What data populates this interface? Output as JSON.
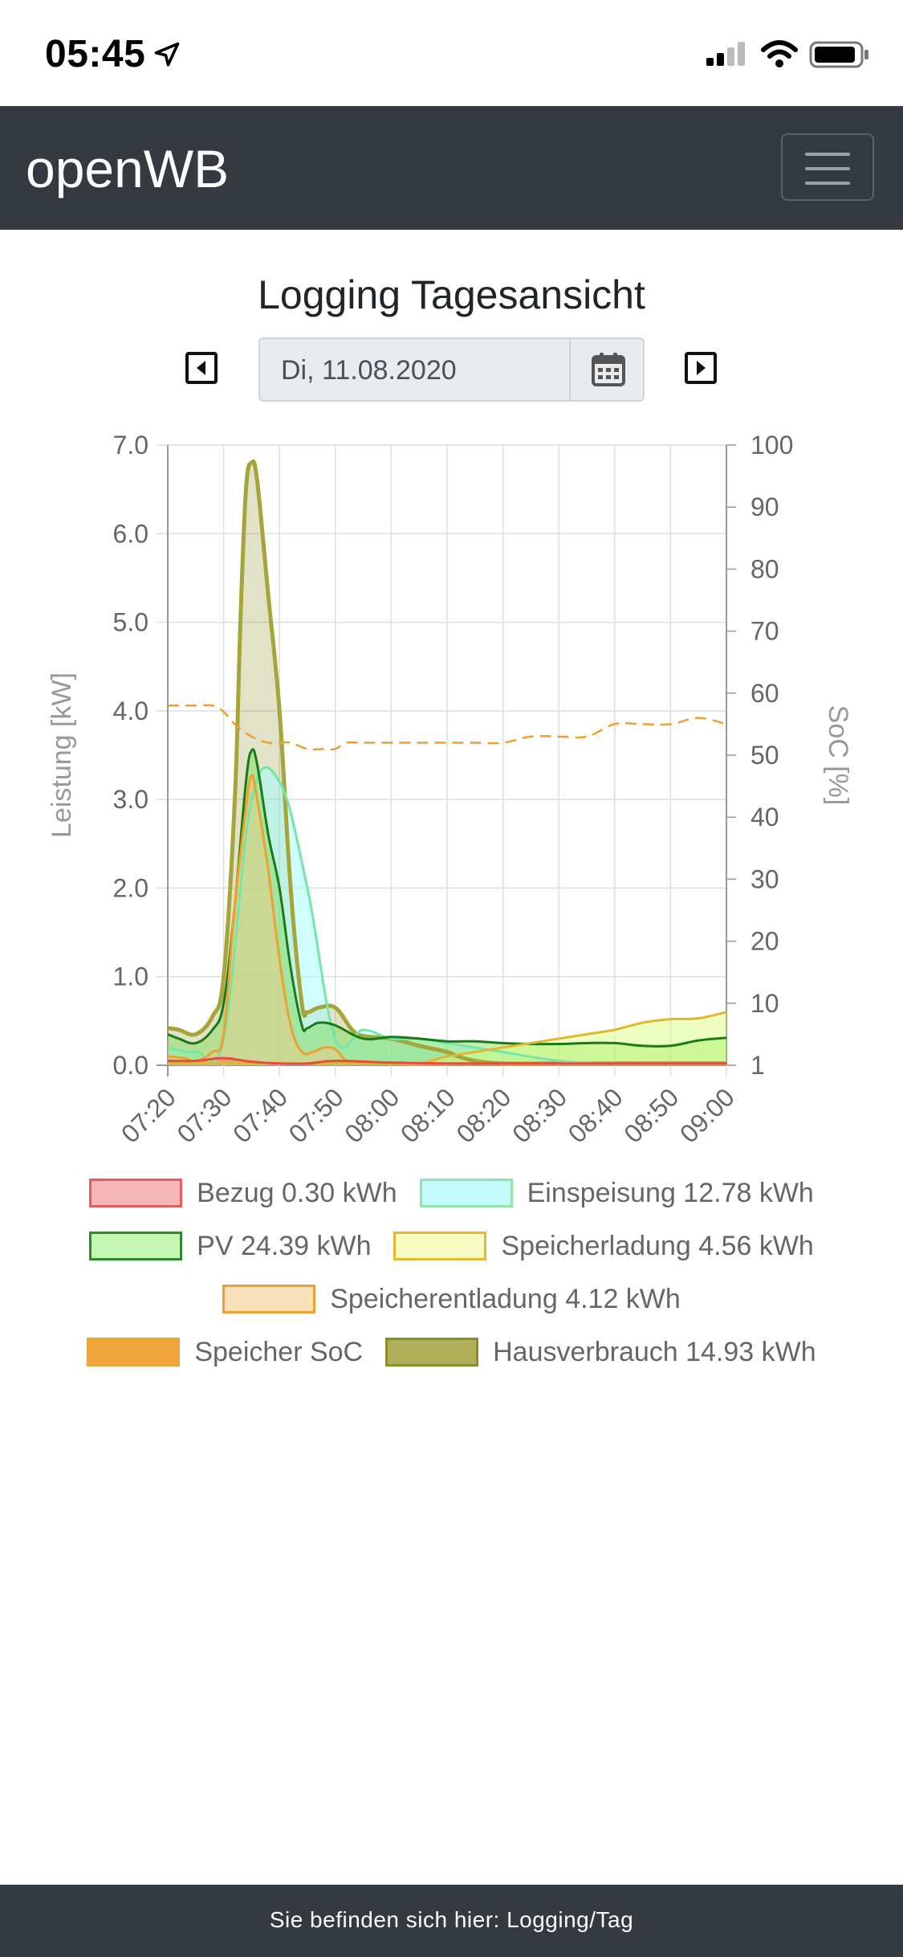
{
  "status_bar": {
    "time": "05:45",
    "icons": [
      "location-arrow-icon",
      "cellular-signal-icon",
      "wifi-icon",
      "battery-icon"
    ]
  },
  "navbar": {
    "brand": "openWB",
    "menu_icon": "hamburger-icon"
  },
  "page": {
    "title": "Logging Tagesansicht",
    "date_value": "Di, 11.08.2020",
    "prev_icon": "caret-left-icon",
    "next_icon": "caret-right-icon",
    "calendar_icon": "calendar-icon"
  },
  "chart_data": {
    "type": "line",
    "ylabel_left": "Leistung [kW]",
    "ylabel_right": "SoC [%]",
    "ylim_left": [
      0,
      7
    ],
    "ylim_right": [
      1,
      100
    ],
    "yticks_left": [
      "0.0",
      "1.0",
      "2.0",
      "3.0",
      "4.0",
      "5.0",
      "6.0",
      "7.0"
    ],
    "yticks_right": [
      "1",
      "10",
      "20",
      "30",
      "40",
      "50",
      "60",
      "70",
      "80",
      "90",
      "100"
    ],
    "x_ticks": [
      "07:20",
      "07:30",
      "07:40",
      "07:50",
      "08:00",
      "08:10",
      "08:20",
      "08:30",
      "08:40",
      "08:50",
      "09:00"
    ],
    "x_minutes_range": [
      0,
      100
    ],
    "grid": true,
    "series": [
      {
        "name": "Bezug 0.30 kWh",
        "axis": "left",
        "color": "#e74c3c",
        "fill": "rgba(239,108,108,0.45)",
        "x": [
          0,
          5,
          10,
          15,
          20,
          25,
          30,
          40,
          50,
          60,
          70,
          80,
          90,
          100
        ],
        "y": [
          0.05,
          0.05,
          0.08,
          0.04,
          0.02,
          0.02,
          0.05,
          0.03,
          0.02,
          0.02,
          0.02,
          0.02,
          0.02,
          0.02
        ]
      },
      {
        "name": "Einspeisung 12.78 kWh",
        "axis": "left",
        "color": "#76e6a8",
        "fill": "rgba(160,255,255,0.5)",
        "x": [
          0,
          5,
          10,
          15,
          20,
          25,
          30,
          35,
          40,
          45,
          50,
          55,
          60,
          70,
          80,
          90,
          100
        ],
        "y": [
          0.2,
          0.15,
          0.3,
          3.0,
          3.2,
          2.0,
          0.3,
          0.4,
          0.3,
          0.3,
          0.25,
          0.2,
          0.15,
          0.05,
          0.02,
          0.02,
          0.02
        ]
      },
      {
        "name": "PV 24.39 kWh",
        "axis": "left",
        "color": "#1a7a1a",
        "fill": "rgba(120,220,80,0.45)",
        "x": [
          0,
          2,
          5,
          8,
          10,
          12,
          14,
          15,
          16,
          18,
          20,
          22,
          24,
          25,
          27,
          30,
          35,
          40,
          45,
          50,
          55,
          60,
          65,
          70,
          75,
          80,
          85,
          90,
          95,
          100
        ],
        "y": [
          0.35,
          0.3,
          0.25,
          0.4,
          0.7,
          1.8,
          3.2,
          3.55,
          3.4,
          2.6,
          2.0,
          1.1,
          0.45,
          0.42,
          0.48,
          0.45,
          0.3,
          0.32,
          0.3,
          0.27,
          0.27,
          0.25,
          0.24,
          0.24,
          0.25,
          0.25,
          0.22,
          0.22,
          0.28,
          0.31
        ]
      },
      {
        "name": "Speicherladung 4.56 kWh",
        "axis": "left",
        "color": "#e0b830",
        "fill": "rgba(220,255,120,0.45)",
        "x": [
          0,
          10,
          20,
          30,
          40,
          45,
          50,
          55,
          60,
          65,
          70,
          75,
          80,
          85,
          90,
          95,
          100
        ],
        "y": [
          0.02,
          0.02,
          0.02,
          0.02,
          0.02,
          0.02,
          0.1,
          0.15,
          0.2,
          0.25,
          0.3,
          0.35,
          0.4,
          0.48,
          0.52,
          0.53,
          0.6
        ]
      },
      {
        "name": "Speicherentladung 4.12 kWh",
        "axis": "left",
        "color": "#f0a030",
        "fill": "rgba(250,200,130,0.45)",
        "x": [
          0,
          3,
          5,
          8,
          10,
          12,
          14,
          15,
          16,
          18,
          20,
          22,
          24,
          26,
          28,
          30,
          32,
          35,
          40,
          50,
          60,
          70,
          80,
          90,
          100
        ],
        "y": [
          0.1,
          0.08,
          0.05,
          0.15,
          0.35,
          1.8,
          2.9,
          3.27,
          3.0,
          2.2,
          1.2,
          0.45,
          0.15,
          0.15,
          0.2,
          0.18,
          0.05,
          0.02,
          0.01,
          0.01,
          0.01,
          0.01,
          0.01,
          0.01,
          0.01
        ]
      },
      {
        "name": "Speicher SoC",
        "axis": "right",
        "color": "#f0a030",
        "dashed": true,
        "x": [
          0,
          5,
          8,
          10,
          12,
          15,
          18,
          20,
          22,
          25,
          28,
          30,
          32,
          35,
          40,
          45,
          50,
          55,
          60,
          65,
          70,
          75,
          80,
          85,
          90,
          95,
          100
        ],
        "y": [
          58,
          58,
          58,
          57,
          55,
          53,
          52,
          52,
          52,
          51,
          51,
          51,
          52,
          52,
          52,
          52,
          52,
          52,
          52,
          53,
          53,
          53,
          55,
          55,
          55,
          56,
          55
        ]
      },
      {
        "name": "Hausverbrauch 14.93 kWh",
        "axis": "left",
        "color": "#a5a53a",
        "fill": "rgba(140,140,40,0.25)",
        "x": [
          0,
          2,
          5,
          8,
          10,
          12,
          13,
          14,
          15,
          16,
          18,
          20,
          22,
          24,
          25,
          27,
          30,
          33,
          35,
          40,
          45,
          50,
          52,
          55,
          60,
          70,
          80,
          90,
          100
        ],
        "y": [
          0.42,
          0.4,
          0.35,
          0.55,
          1.0,
          3.0,
          5.0,
          6.5,
          6.8,
          6.6,
          5.3,
          4.0,
          2.0,
          0.7,
          0.6,
          0.65,
          0.65,
          0.4,
          0.33,
          0.3,
          0.22,
          0.15,
          0.1,
          0.05,
          0.02,
          0.02,
          0.02,
          0.02,
          0.02
        ]
      }
    ]
  },
  "legend": [
    {
      "label": "Bezug 0.30 kWh",
      "fill": "#f4b6b6",
      "border": "#e85c5c"
    },
    {
      "label": "Einspeisung 12.78 kWh",
      "fill": "#c4fafa",
      "border": "#8fe6a8"
    },
    {
      "label": "PV 24.39 kWh",
      "fill": "#c4f7b4",
      "border": "#2c8c2c"
    },
    {
      "label": "Speicherladung 4.56 kWh",
      "fill": "#f6fcc2",
      "border": "#e8b830"
    },
    {
      "label": "Speicherentladung 4.12 kWh",
      "fill": "#fbe0bc",
      "border": "#f0a030"
    },
    {
      "label": "Speicher SoC",
      "fill": "#f0a53a",
      "border": "#f0a53a"
    },
    {
      "label": "Hausverbrauch 14.93 kWh",
      "fill": "#b0b05a",
      "border": "#8c8c2a"
    }
  ],
  "footer": {
    "text": "Sie befinden sich hier: Logging/Tag"
  }
}
